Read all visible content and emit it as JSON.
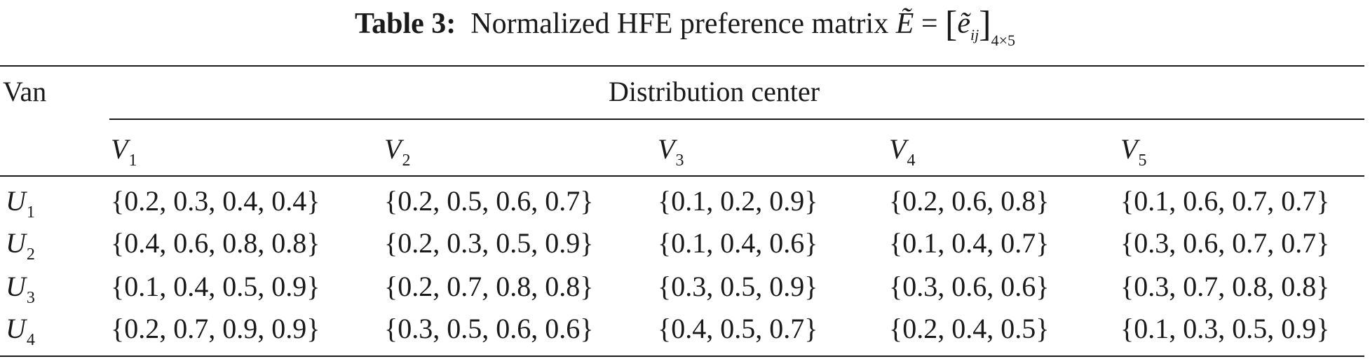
{
  "caption": {
    "label": "Table 3:",
    "text": "Normalized HFE preference matrix",
    "matrix_symbol": "Ẽ",
    "equals": "=",
    "element_symbol": "ẽ",
    "element_index": "ij",
    "dims": "4×5"
  },
  "table": {
    "stub_header": "Van",
    "group_header": "Distribution center",
    "columns": [
      {
        "symbol": "V",
        "index": "1"
      },
      {
        "symbol": "V",
        "index": "2"
      },
      {
        "symbol": "V",
        "index": "3"
      },
      {
        "symbol": "V",
        "index": "4"
      },
      {
        "symbol": "V",
        "index": "5"
      }
    ],
    "rows": [
      {
        "symbol": "U",
        "index": "1",
        "cells": [
          "{0.2, 0.3, 0.4, 0.4}",
          "{0.2, 0.5, 0.6, 0.7}",
          "{0.1, 0.2, 0.9}",
          "{0.2, 0.6, 0.8}",
          "{0.1, 0.6, 0.7, 0.7}"
        ]
      },
      {
        "symbol": "U",
        "index": "2",
        "cells": [
          "{0.4, 0.6, 0.8, 0.8}",
          "{0.2, 0.3, 0.5, 0.9}",
          "{0.1, 0.4, 0.6}",
          "{0.1, 0.4, 0.7}",
          "{0.3, 0.6, 0.7, 0.7}"
        ]
      },
      {
        "symbol": "U",
        "index": "3",
        "cells": [
          "{0.1, 0.4, 0.5, 0.9}",
          "{0.2, 0.7, 0.8, 0.8}",
          "{0.3, 0.5, 0.9}",
          "{0.3, 0.6, 0.6}",
          "{0.3, 0.7, 0.8, 0.8}"
        ]
      },
      {
        "symbol": "U",
        "index": "4",
        "cells": [
          "{0.2, 0.7, 0.9, 0.9}",
          "{0.3, 0.5, 0.6, 0.6}",
          "{0.4, 0.5, 0.7}",
          "{0.2, 0.4, 0.5}",
          "{0.1, 0.3, 0.5, 0.9}"
        ]
      }
    ]
  }
}
